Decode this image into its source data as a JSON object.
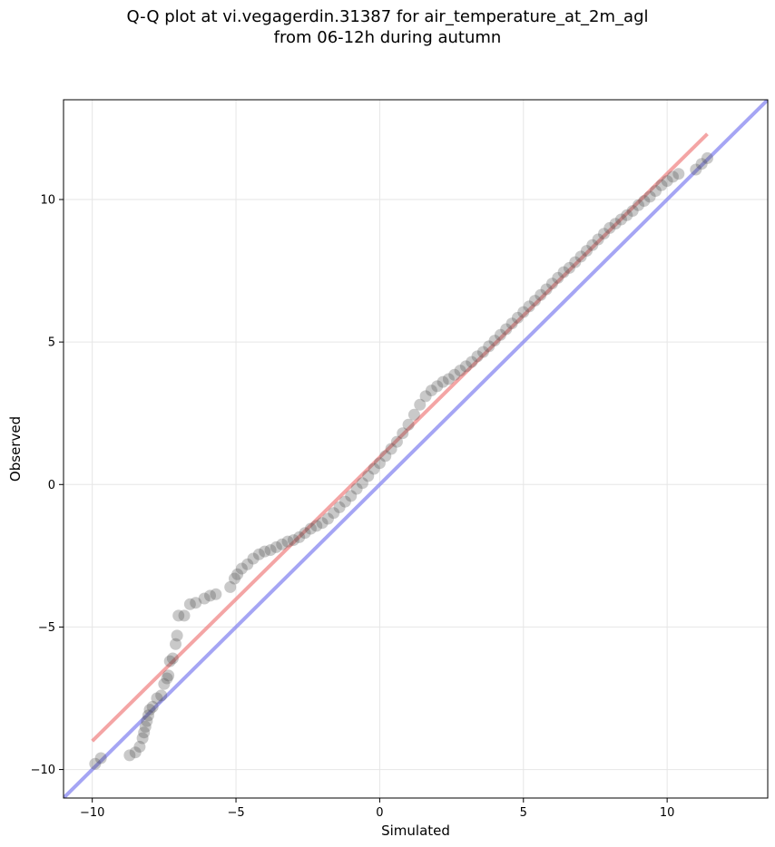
{
  "chart_data": {
    "type": "scatter",
    "title_line1": "Q-Q plot at vi.vegagerdin.31387 for air_temperature_at_2m_agl",
    "title_line2": "from 06-12h during autumn",
    "xlabel": "Simulated",
    "ylabel": "Observed",
    "xlim": [
      -11.0,
      13.5
    ],
    "ylim": [
      -11.0,
      13.5
    ],
    "xticks": [
      -10,
      -5,
      0,
      5,
      10
    ],
    "yticks": [
      -10,
      -5,
      0,
      5,
      10
    ],
    "xtick_labels": [
      "−10",
      "−5",
      "0",
      "5",
      "10"
    ],
    "ytick_labels": [
      "−10",
      "−5",
      "0",
      "5",
      "10"
    ],
    "grid": true,
    "colors": {
      "points": "#4d4d4d",
      "fit_line": "#f08080",
      "identity_line": "#8080f0"
    },
    "reference_lines": [
      {
        "kind": "fit",
        "x": [
          -10.0,
          11.4
        ],
        "y": [
          -9.0,
          12.3
        ]
      },
      {
        "kind": "identity",
        "x": [
          -11.0,
          13.5
        ],
        "y": [
          -11.0,
          13.5
        ]
      }
    ],
    "points": {
      "x": [
        -9.9,
        -9.7,
        -8.7,
        -8.5,
        -8.35,
        -8.25,
        -8.2,
        -8.15,
        -8.1,
        -8.05,
        -8.0,
        -7.9,
        -7.75,
        -7.6,
        -7.5,
        -7.4,
        -7.35,
        -7.3,
        -7.2,
        -7.1,
        -7.05,
        -7.0,
        -6.8,
        -6.6,
        -6.4,
        -6.1,
        -5.9,
        -5.7,
        -5.2,
        -5.05,
        -4.95,
        -4.8,
        -4.6,
        -4.4,
        -4.2,
        -4.0,
        -3.8,
        -3.6,
        -3.4,
        -3.2,
        -3.0,
        -2.8,
        -2.6,
        -2.4,
        -2.2,
        -2.0,
        -1.8,
        -1.6,
        -1.4,
        -1.2,
        -1.0,
        -0.8,
        -0.6,
        -0.4,
        -0.2,
        0.0,
        0.2,
        0.4,
        0.6,
        0.8,
        1.0,
        1.2,
        1.4,
        1.6,
        1.8,
        2.0,
        2.2,
        2.4,
        2.6,
        2.8,
        3.0,
        3.2,
        3.4,
        3.6,
        3.8,
        4.0,
        4.2,
        4.4,
        4.6,
        4.8,
        5.0,
        5.2,
        5.4,
        5.6,
        5.8,
        6.0,
        6.2,
        6.4,
        6.6,
        6.8,
        7.0,
        7.2,
        7.4,
        7.6,
        7.8,
        8.0,
        8.2,
        8.4,
        8.6,
        8.8,
        9.0,
        9.2,
        9.4,
        9.6,
        9.8,
        10.0,
        10.2,
        10.4,
        11.0,
        11.2,
        11.4
      ],
      "y": [
        -9.8,
        -9.6,
        -9.5,
        -9.4,
        -9.2,
        -8.9,
        -8.7,
        -8.5,
        -8.3,
        -8.1,
        -7.9,
        -7.8,
        -7.5,
        -7.4,
        -7.0,
        -6.8,
        -6.7,
        -6.2,
        -6.1,
        -5.6,
        -5.3,
        -4.6,
        -4.6,
        -4.2,
        -4.15,
        -4.0,
        -3.9,
        -3.85,
        -3.6,
        -3.3,
        -3.15,
        -2.95,
        -2.8,
        -2.6,
        -2.45,
        -2.35,
        -2.3,
        -2.2,
        -2.1,
        -2.0,
        -1.95,
        -1.85,
        -1.7,
        -1.55,
        -1.45,
        -1.35,
        -1.2,
        -1.0,
        -0.8,
        -0.6,
        -0.4,
        -0.15,
        0.05,
        0.3,
        0.55,
        0.75,
        1.0,
        1.25,
        1.5,
        1.8,
        2.1,
        2.45,
        2.8,
        3.1,
        3.3,
        3.45,
        3.6,
        3.7,
        3.85,
        4.0,
        4.15,
        4.3,
        4.5,
        4.65,
        4.85,
        5.05,
        5.25,
        5.45,
        5.65,
        5.85,
        6.05,
        6.25,
        6.45,
        6.65,
        6.85,
        7.05,
        7.25,
        7.45,
        7.6,
        7.8,
        8.0,
        8.2,
        8.4,
        8.6,
        8.8,
        9.0,
        9.15,
        9.3,
        9.45,
        9.6,
        9.8,
        9.95,
        10.1,
        10.3,
        10.5,
        10.65,
        10.8,
        10.9,
        11.05,
        11.25,
        11.45
      ]
    }
  }
}
